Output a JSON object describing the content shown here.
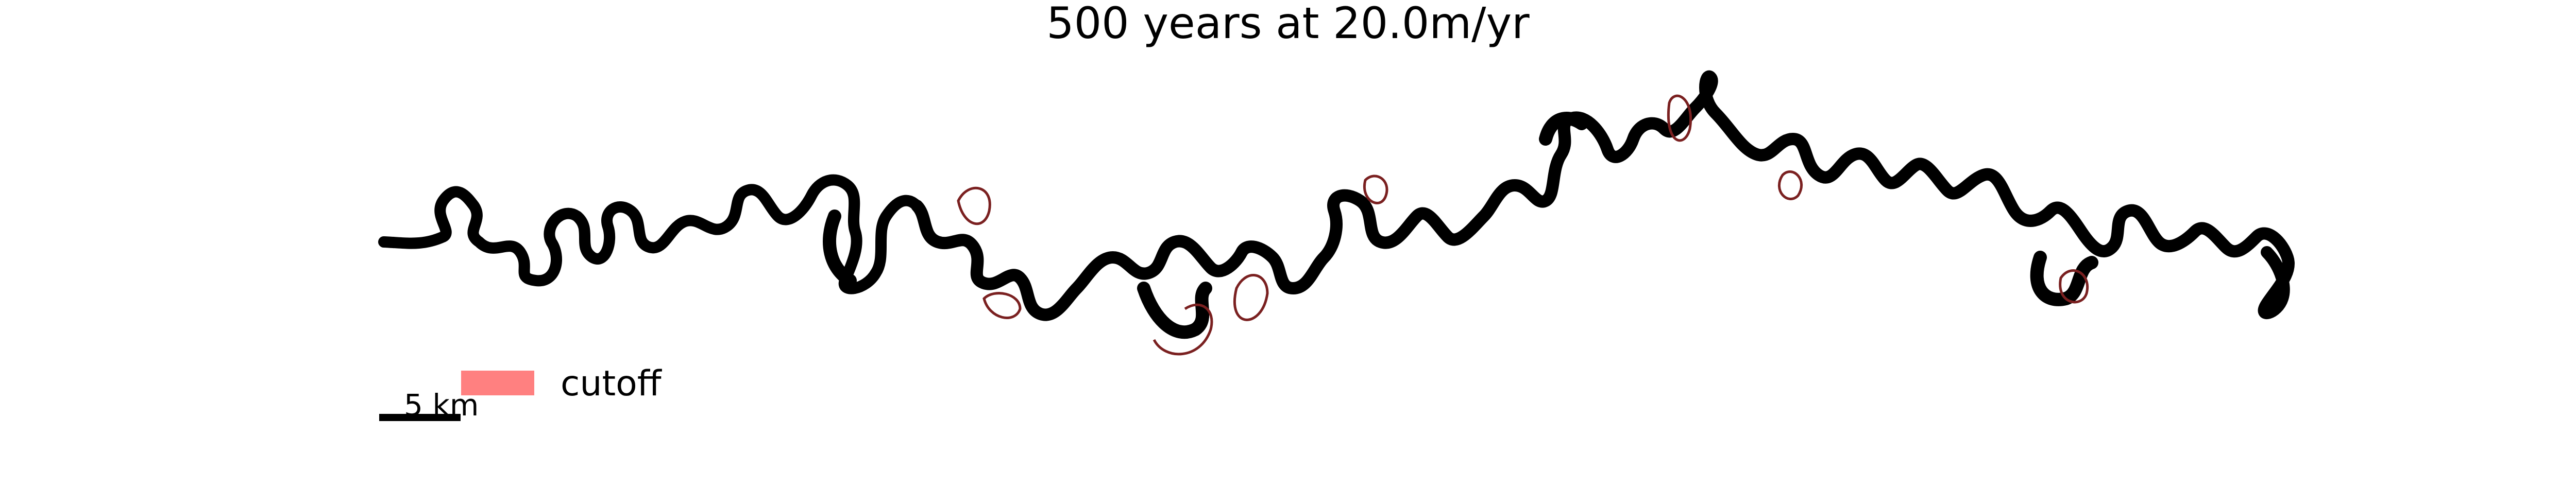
{
  "figure": {
    "title": "500 years at 20.0m/yr"
  },
  "legend": {
    "entries": [
      {
        "label": "cutoff",
        "color": "#ff8080"
      }
    ]
  },
  "scale_bar": {
    "label": "5 km",
    "distance_km": 5
  },
  "colors": {
    "channel": "#000000",
    "cutoff_fill": "#ff8080",
    "cutoff_outline": "#7a2020"
  }
}
